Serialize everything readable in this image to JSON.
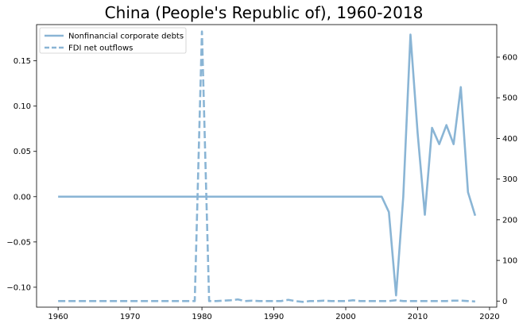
{
  "chart_data": {
    "type": "line",
    "title": "China (People's Republic of), 1960-2018",
    "xlabel": "",
    "ylabel_left": "",
    "ylabel_right": "",
    "x_ticks": [
      1960,
      1970,
      1980,
      1990,
      2000,
      2010,
      2020
    ],
    "y_left_ticks": [
      -0.1,
      -0.05,
      0.0,
      0.05,
      0.1,
      0.15
    ],
    "y_left_tick_labels": [
      "−0.10",
      "−0.05",
      "0.00",
      "0.05",
      "0.10",
      "0.15"
    ],
    "y_right_ticks": [
      0,
      100,
      200,
      300,
      400,
      500,
      600
    ],
    "y_right_tick_labels": [
      "0",
      "100",
      "200",
      "300",
      "400",
      "500",
      "600"
    ],
    "xlim": [
      1957,
      2021
    ],
    "ylim_left": [
      -0.122,
      0.19
    ],
    "ylim_right": [
      -15,
      680
    ],
    "grid": false,
    "legend_position": "top-left",
    "color": "#8ab5d5",
    "series": [
      {
        "name": "Nonfinancial corporate debts",
        "axis": "left",
        "style": "solid",
        "points": [
          [
            1960,
            0.0
          ],
          [
            1965,
            0.0
          ],
          [
            1970,
            0.0
          ],
          [
            1975,
            0.0
          ],
          [
            1980,
            0.0
          ],
          [
            1985,
            0.0
          ],
          [
            1990,
            0.0
          ],
          [
            1995,
            0.0
          ],
          [
            2000,
            0.0
          ],
          [
            2005,
            0.0
          ],
          [
            2006,
            -0.017
          ],
          [
            2007,
            -0.109
          ],
          [
            2008,
            0.0
          ],
          [
            2009,
            0.179
          ],
          [
            2010,
            0.07
          ],
          [
            2011,
            -0.02
          ],
          [
            2012,
            0.076
          ],
          [
            2013,
            0.058
          ],
          [
            2014,
            0.079
          ],
          [
            2015,
            0.058
          ],
          [
            2016,
            0.121
          ],
          [
            2017,
            0.005
          ],
          [
            2018,
            -0.021
          ]
        ]
      },
      {
        "name": "FDI net outflows",
        "axis": "right",
        "style": "dashed",
        "points": [
          [
            1960,
            0
          ],
          [
            1965,
            0
          ],
          [
            1970,
            0
          ],
          [
            1975,
            0
          ],
          [
            1978,
            0
          ],
          [
            1979,
            0
          ],
          [
            1980,
            663
          ],
          [
            1981,
            0
          ],
          [
            1982,
            0
          ],
          [
            1983,
            1
          ],
          [
            1984,
            2
          ],
          [
            1985,
            4
          ],
          [
            1986,
            0
          ],
          [
            1987,
            1
          ],
          [
            1988,
            0
          ],
          [
            1989,
            0
          ],
          [
            1990,
            0
          ],
          [
            1991,
            0
          ],
          [
            1992,
            3
          ],
          [
            1993,
            0
          ],
          [
            1994,
            -2
          ],
          [
            1995,
            0
          ],
          [
            1996,
            0
          ],
          [
            1997,
            1
          ],
          [
            1998,
            0
          ],
          [
            1999,
            0
          ],
          [
            2000,
            0
          ],
          [
            2001,
            2
          ],
          [
            2002,
            0
          ],
          [
            2003,
            0
          ],
          [
            2004,
            0
          ],
          [
            2005,
            0
          ],
          [
            2006,
            0
          ],
          [
            2007,
            2
          ],
          [
            2008,
            0
          ],
          [
            2009,
            0
          ],
          [
            2010,
            0
          ],
          [
            2011,
            0
          ],
          [
            2012,
            0
          ],
          [
            2013,
            0
          ],
          [
            2014,
            0
          ],
          [
            2015,
            1
          ],
          [
            2016,
            1
          ],
          [
            2017,
            0
          ],
          [
            2018,
            -1
          ]
        ]
      }
    ]
  }
}
